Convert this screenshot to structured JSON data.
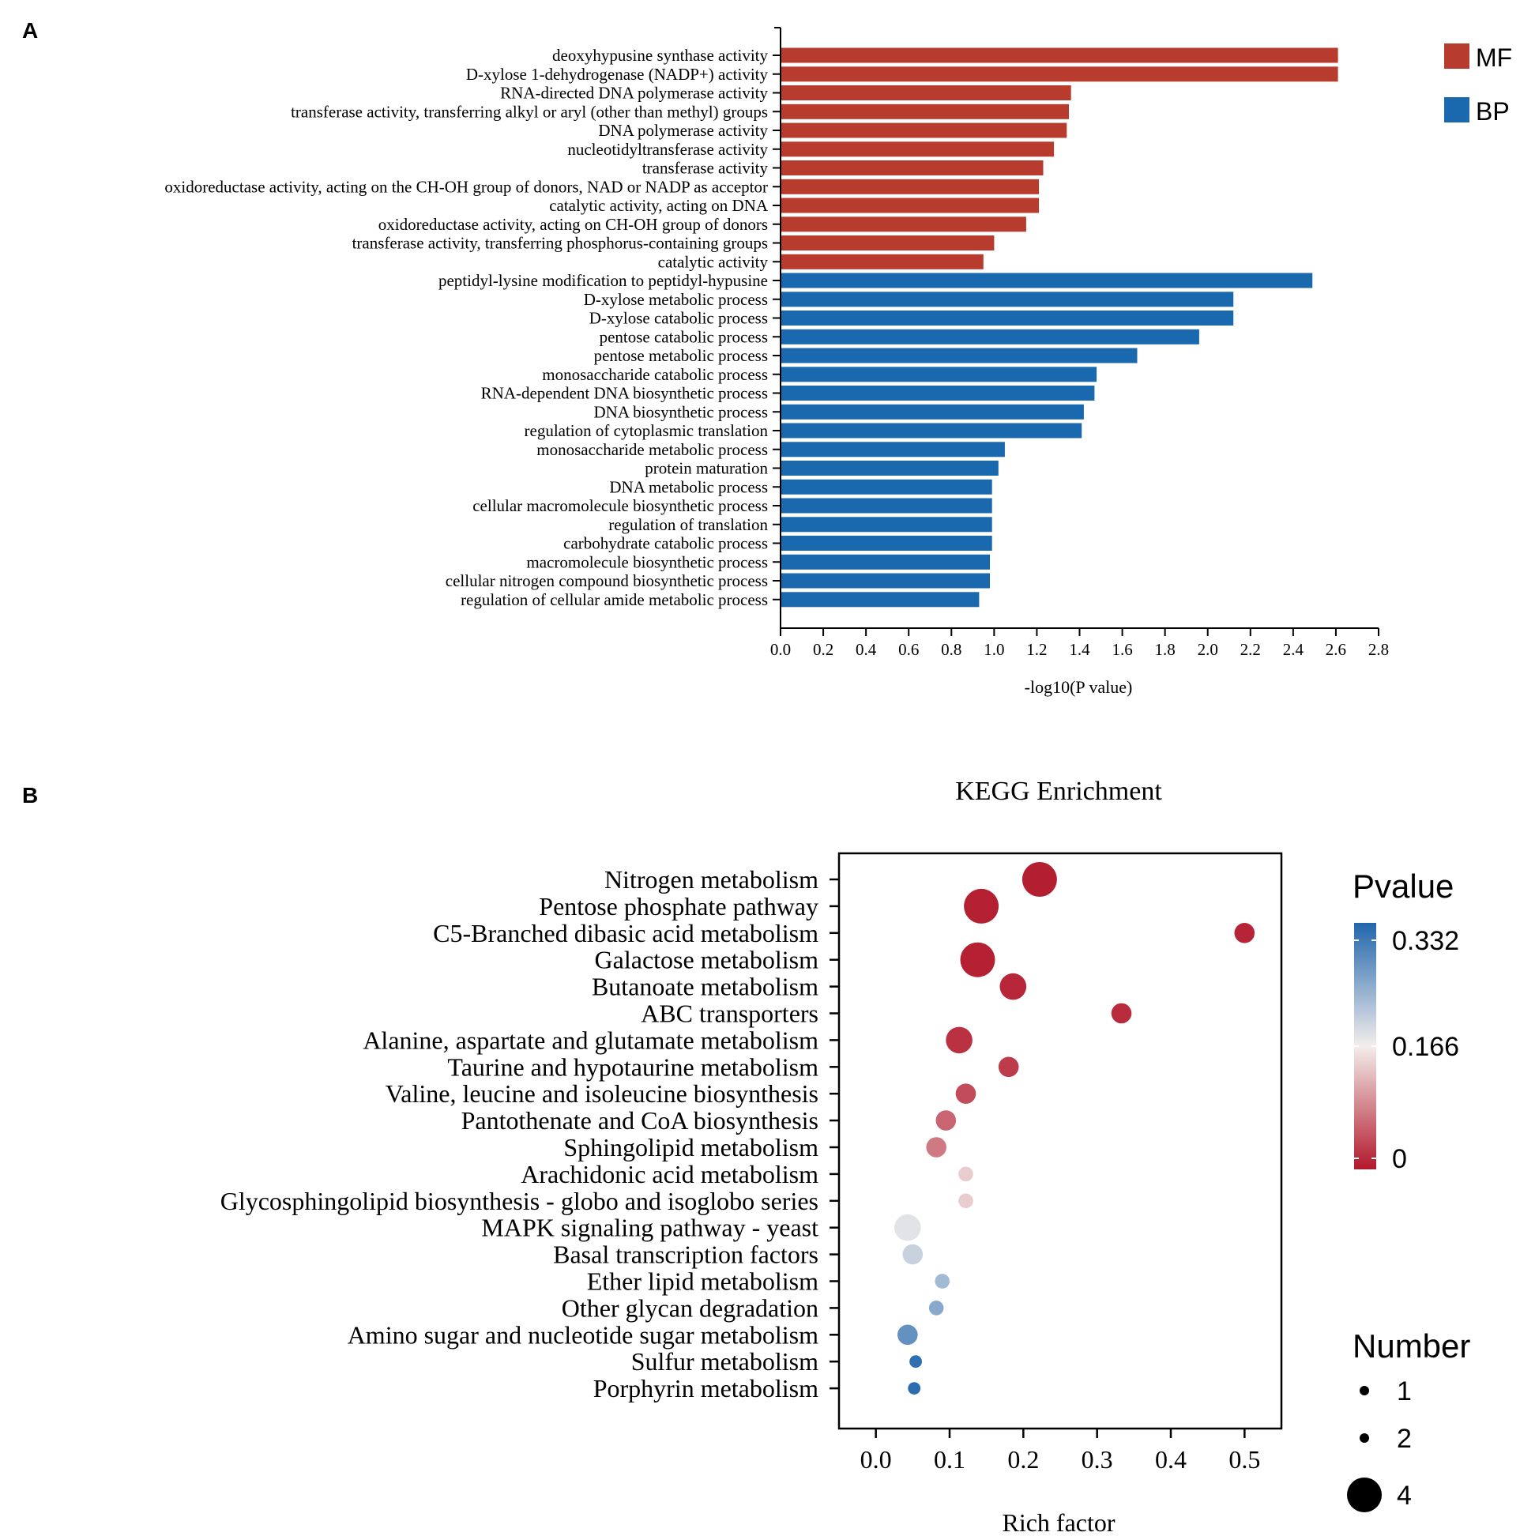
{
  "panels": {
    "a_label": "A",
    "b_label": "B"
  },
  "chart_data": [
    {
      "type": "bar",
      "orientation": "horizontal",
      "xlabel": "-log10(P value)",
      "xlim": [
        0,
        2.8
      ],
      "xticks": [
        "0.0",
        "0.2",
        "0.4",
        "0.6",
        "0.8",
        "1.0",
        "1.2",
        "1.4",
        "1.6",
        "1.8",
        "2.0",
        "2.2",
        "2.4",
        "2.6",
        "2.8"
      ],
      "legend": [
        {
          "label": "MF",
          "color": "#b83c2d"
        },
        {
          "label": "BP",
          "color": "#1a68ad"
        }
      ],
      "legend_position": "top-right",
      "bars": [
        {
          "label": "deoxyhypusine synthase activity",
          "value": 2.61,
          "group": "MF"
        },
        {
          "label": "D-xylose 1-dehydrogenase (NADP+) activity",
          "value": 2.61,
          "group": "MF"
        },
        {
          "label": "RNA-directed DNA polymerase activity",
          "value": 1.36,
          "group": "MF"
        },
        {
          "label": "transferase activity, transferring alkyl or aryl (other than methyl) groups",
          "value": 1.35,
          "group": "MF"
        },
        {
          "label": "DNA polymerase activity",
          "value": 1.34,
          "group": "MF"
        },
        {
          "label": "nucleotidyltransferase activity",
          "value": 1.28,
          "group": "MF"
        },
        {
          "label": "transferase activity",
          "value": 1.23,
          "group": "MF"
        },
        {
          "label": "oxidoreductase activity, acting on the CH-OH group of donors, NAD or NADP as acceptor",
          "value": 1.21,
          "group": "MF"
        },
        {
          "label": "catalytic activity, acting on DNA",
          "value": 1.21,
          "group": "MF"
        },
        {
          "label": "oxidoreductase activity, acting on CH-OH group of donors",
          "value": 1.15,
          "group": "MF"
        },
        {
          "label": "transferase activity, transferring phosphorus-containing groups",
          "value": 1.0,
          "group": "MF"
        },
        {
          "label": "catalytic activity",
          "value": 0.95,
          "group": "MF"
        },
        {
          "label": "peptidyl-lysine modification to peptidyl-hypusine",
          "value": 2.49,
          "group": "BP"
        },
        {
          "label": "D-xylose metabolic process",
          "value": 2.12,
          "group": "BP"
        },
        {
          "label": "D-xylose catabolic process",
          "value": 2.12,
          "group": "BP"
        },
        {
          "label": "pentose catabolic process",
          "value": 1.96,
          "group": "BP"
        },
        {
          "label": "pentose metabolic process",
          "value": 1.67,
          "group": "BP"
        },
        {
          "label": "monosaccharide catabolic process",
          "value": 1.48,
          "group": "BP"
        },
        {
          "label": "RNA-dependent DNA biosynthetic process",
          "value": 1.47,
          "group": "BP"
        },
        {
          "label": "DNA biosynthetic process",
          "value": 1.42,
          "group": "BP"
        },
        {
          "label": "regulation of cytoplasmic translation",
          "value": 1.41,
          "group": "BP"
        },
        {
          "label": "monosaccharide metabolic process",
          "value": 1.05,
          "group": "BP"
        },
        {
          "label": "protein maturation",
          "value": 1.02,
          "group": "BP"
        },
        {
          "label": "DNA metabolic process",
          "value": 0.99,
          "group": "BP"
        },
        {
          "label": "cellular macromolecule biosynthetic process",
          "value": 0.99,
          "group": "BP"
        },
        {
          "label": "regulation of translation",
          "value": 0.99,
          "group": "BP"
        },
        {
          "label": "carbohydrate catabolic process",
          "value": 0.99,
          "group": "BP"
        },
        {
          "label": "macromolecule biosynthetic process",
          "value": 0.98,
          "group": "BP"
        },
        {
          "label": "cellular nitrogen compound biosynthetic process",
          "value": 0.98,
          "group": "BP"
        },
        {
          "label": "regulation of cellular amide metabolic process",
          "value": 0.93,
          "group": "BP"
        }
      ]
    },
    {
      "type": "scatter",
      "title": "KEGG Enrichment",
      "xlabel": "Rich factor",
      "xlim": [
        -0.05,
        0.55
      ],
      "xticks": [
        "0.0",
        "0.1",
        "0.2",
        "0.3",
        "0.4",
        "0.5"
      ],
      "color_legend": {
        "title": "Pvalue",
        "min": 0,
        "max": 0.332,
        "tick_labels": [
          "0.332",
          "0.166",
          "0"
        ],
        "colors": {
          "low": "#b2182b",
          "mid": "#f3eeec",
          "high": "#2166ac"
        }
      },
      "size_legend": {
        "title": "Number",
        "entries": [
          {
            "label": "1",
            "n": 1
          },
          {
            "label": "2",
            "n": 2
          },
          {
            "label": "4",
            "n": 4
          }
        ]
      },
      "points": [
        {
          "label": "Nitrogen metabolism",
          "x": 0.222,
          "number": 4,
          "pvalue": 0.005
        },
        {
          "label": "Pentose phosphate pathway",
          "x": 0.143,
          "number": 4,
          "pvalue": 0.006
        },
        {
          "label": "C5-Branched dibasic acid metabolism",
          "x": 0.5,
          "number": 1,
          "pvalue": 0.01
        },
        {
          "label": "Galactose metabolism",
          "x": 0.138,
          "number": 4,
          "pvalue": 0.007
        },
        {
          "label": "Butanoate metabolism",
          "x": 0.186,
          "number": 2,
          "pvalue": 0.012
        },
        {
          "label": "ABC transporters",
          "x": 0.333,
          "number": 1,
          "pvalue": 0.015
        },
        {
          "label": "Alanine, aspartate and glutamate metabolism",
          "x": 0.113,
          "number": 2,
          "pvalue": 0.02
        },
        {
          "label": "Taurine and hypotaurine metabolism",
          "x": 0.18,
          "number": 1,
          "pvalue": 0.028
        },
        {
          "label": "Valine, leucine and isoleucine biosynthesis",
          "x": 0.122,
          "number": 1,
          "pvalue": 0.04
        },
        {
          "label": "Pantothenate and CoA biosynthesis",
          "x": 0.095,
          "number": 1,
          "pvalue": 0.06
        },
        {
          "label": "Sphingolipid metabolism",
          "x": 0.082,
          "number": 1,
          "pvalue": 0.075
        },
        {
          "label": "Arachidonic acid metabolism",
          "x": 0.122,
          "number": 0.5,
          "pvalue": 0.14
        },
        {
          "label": "Glycosphingolipid biosynthesis - globo and isoglobo series",
          "x": 0.122,
          "number": 0.5,
          "pvalue": 0.14
        },
        {
          "label": "MAPK signaling pathway - yeast",
          "x": 0.043,
          "number": 2,
          "pvalue": 0.18
        },
        {
          "label": "Basal transcription factors",
          "x": 0.05,
          "number": 1,
          "pvalue": 0.2
        },
        {
          "label": "Ether lipid metabolism",
          "x": 0.09,
          "number": 0.5,
          "pvalue": 0.23
        },
        {
          "label": "Other glycan degradation",
          "x": 0.082,
          "number": 0.5,
          "pvalue": 0.25
        },
        {
          "label": "Amino sugar and nucleotide sugar metabolism",
          "x": 0.043,
          "number": 1,
          "pvalue": 0.28
        },
        {
          "label": "Sulfur metabolism",
          "x": 0.054,
          "number": 0.4,
          "pvalue": 0.32
        },
        {
          "label": "Porphyrin metabolism",
          "x": 0.052,
          "number": 0.4,
          "pvalue": 0.325
        }
      ]
    }
  ]
}
